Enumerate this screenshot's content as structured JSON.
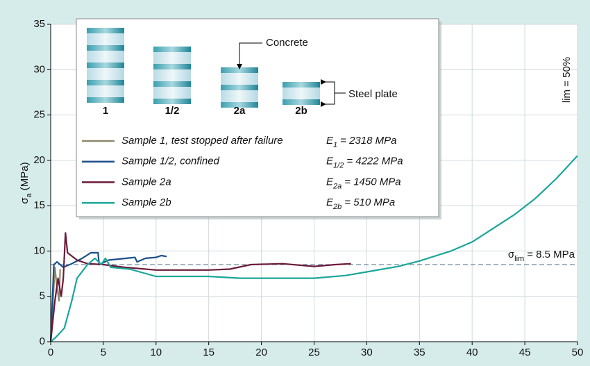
{
  "chart_data": {
    "type": "line",
    "y_label": {
      "symbol": "σ",
      "sub": "a",
      "unit": "(MPa)"
    },
    "xlim": [
      0,
      50
    ],
    "xticks": [
      0,
      5,
      10,
      15,
      20,
      25,
      30,
      35,
      40,
      45,
      50
    ],
    "ylim": [
      0,
      35
    ],
    "yticks": [
      0,
      5,
      10,
      15,
      20,
      25,
      30,
      35
    ],
    "grid": true,
    "series": [
      {
        "name": "Sample 1, test stopped after failure",
        "color": "#8c8a6c",
        "modulus": {
          "symbol": "E",
          "sub": "1",
          "rest": "= 2318 MPa"
        },
        "x": [
          0,
          0.4,
          0.6,
          0.8,
          0.9
        ],
        "values": [
          0,
          8.2,
          6,
          4.5,
          8
        ]
      },
      {
        "name": "Sample 1/2, confined",
        "color": "#1b4f8a",
        "modulus": {
          "symbol": "E",
          "sub": "1/2",
          "rest": "= 4222  MPa"
        },
        "x": [
          0,
          0.3,
          0.6,
          1.2,
          2,
          3,
          3.8,
          4.5,
          4.6,
          5.5,
          8,
          8.2,
          9,
          10,
          10.5,
          11
        ],
        "values": [
          0,
          8.5,
          8.8,
          8.2,
          8.6,
          9.2,
          9.8,
          9.8,
          8.5,
          9,
          9.3,
          8.8,
          9.2,
          9.3,
          9.5,
          9.4
        ]
      },
      {
        "name": "Sample 2a",
        "color": "#6b1a3a",
        "modulus": {
          "symbol": "E",
          "sub": "2a",
          "rest": "= 1450 MPa"
        },
        "x": [
          0,
          0.4,
          0.7,
          1,
          1.2,
          1.4,
          1.6,
          2.5,
          3.5,
          5,
          7,
          10,
          15,
          17,
          19,
          22,
          25,
          27,
          28.5
        ],
        "values": [
          0,
          4.5,
          7,
          5,
          7,
          12,
          9.8,
          9,
          8.6,
          8.5,
          8.2,
          7.9,
          7.9,
          8,
          8.5,
          8.6,
          8.3,
          8.5,
          8.6
        ]
      },
      {
        "name": "Sample 2b",
        "color": "#1aa69a",
        "modulus": {
          "symbol": "E",
          "sub": "2b",
          "rest": "= 510 MPa"
        },
        "x": [
          0,
          0.5,
          1.3,
          2,
          2.5,
          3.5,
          4.2,
          4.8,
          5.2,
          5.7,
          7.5,
          10,
          15,
          18,
          25,
          28,
          30,
          33,
          35,
          38,
          40,
          42,
          44,
          46,
          48,
          50
        ],
        "values": [
          0,
          0.5,
          1.5,
          4.5,
          7,
          8.5,
          9.2,
          8.5,
          9.2,
          8.2,
          8,
          7.2,
          7.2,
          7,
          7,
          7.3,
          7.7,
          8.3,
          8.9,
          10,
          11,
          12.5,
          14,
          15.8,
          18,
          20.5
        ]
      }
    ],
    "reference_line": {
      "value": 8.5,
      "label": {
        "symbol": "σ",
        "sub": "lim",
        "rest": "= 8.5 MPa"
      }
    },
    "annotation": "lim = 50%",
    "specimens": {
      "labels": [
        "1",
        "1/2",
        "2a",
        "2b"
      ],
      "concrete_label": "Concrete",
      "steel_label": "Steel plate"
    }
  }
}
